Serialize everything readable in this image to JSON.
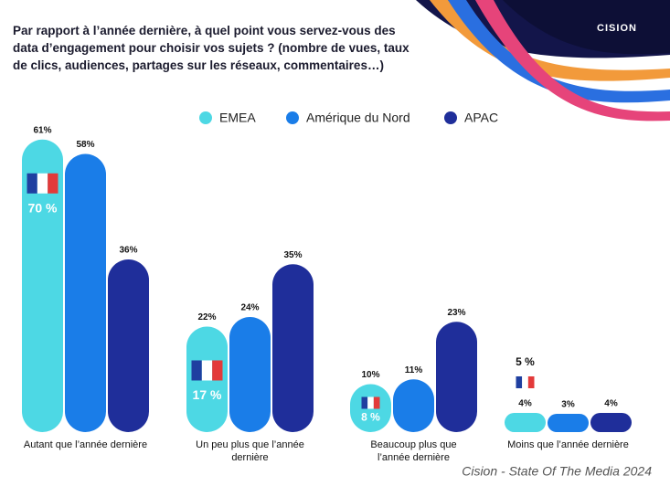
{
  "chart_data": {
    "type": "bar",
    "title": [
      "Par rapport à l’année dernière, à quel point vous servez-vous des",
      "data d’engagement pour choisir vos sujets ? (nombre de vues, taux",
      "de clics, audiences, partages sur les réseaux, commentaires…)"
    ],
    "logo": "CISION",
    "source": "Cision - State Of The Media 2024",
    "categories": [
      "Autant que l’année dernière",
      "Un peu plus que l’année dernière",
      "Beaucoup plus que l’année dernière",
      "Moins que l’année dernière"
    ],
    "series": [
      {
        "name": "EMEA",
        "color": "#4dd8e4",
        "values": [
          61,
          22,
          10,
          4
        ],
        "value_labels": [
          "61%",
          "22%",
          "10%",
          "4%"
        ]
      },
      {
        "name": "Amérique du Nord",
        "color": "#1a7de8",
        "values": [
          58,
          24,
          11,
          3
        ],
        "value_labels": [
          "58%",
          "24%",
          "11%",
          "3%"
        ]
      },
      {
        "name": "APAC",
        "color": "#1f2e9a",
        "values": [
          36,
          35,
          23,
          4
        ],
        "value_labels": [
          "36%",
          "35%",
          "23%",
          "4%"
        ]
      }
    ],
    "france": {
      "values": [
        70,
        17,
        8,
        5
      ],
      "value_labels": [
        "70 %",
        "17 %",
        "8 %",
        "5 %"
      ]
    }
  }
}
